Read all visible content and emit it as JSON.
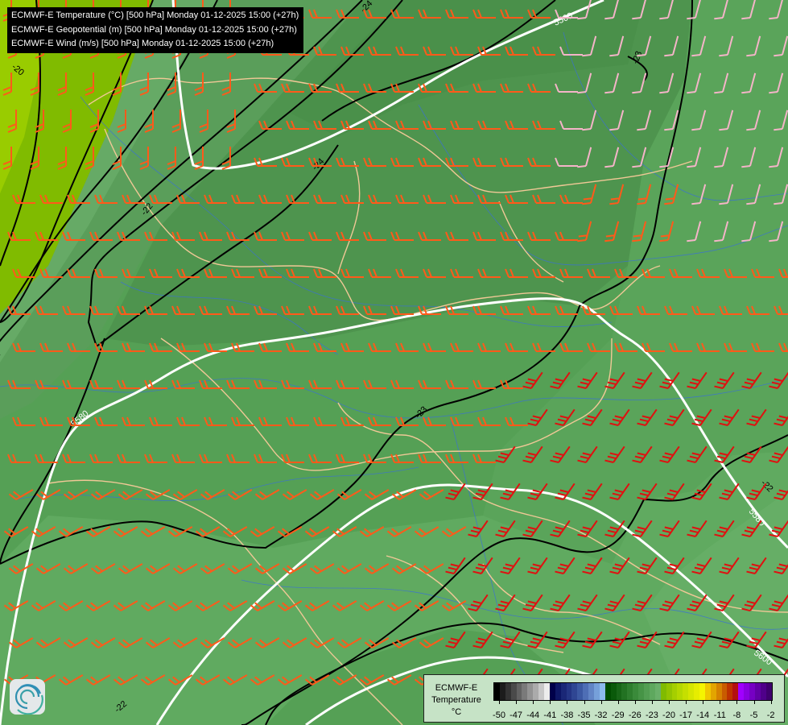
{
  "titles": [
    "ECMWF-E Temperature (°C) [500 hPa] Monday 01-12-2025 15:00 (+27h)",
    "ECMWF-E Geopotential (m) [500 hPa] Monday 01-12-2025 15:00 (+27h)",
    "ECMWF-E Wind (m/s) [500 hPa] Monday 01-12-2025 15:00 (+27h)"
  ],
  "legend": {
    "title_line1": "ECMWF-E",
    "title_line2": "Temperature",
    "unit": "°C",
    "ticks": [
      "-50",
      "-47",
      "-44",
      "-41",
      "-38",
      "-35",
      "-32",
      "-29",
      "-26",
      "-23",
      "-20",
      "-17",
      "-14",
      "-11",
      "-8",
      "-5",
      "-2"
    ],
    "colors": [
      "#000000",
      "#1c1c1c",
      "#333333",
      "#4a4a4a",
      "#626262",
      "#7a7a7a",
      "#939393",
      "#ababab",
      "#c8c8c8",
      "#ececec",
      "#00004a",
      "#0d1666",
      "#1a2777",
      "#243585",
      "#2f4693",
      "#3c59a3",
      "#4e6eb5",
      "#6285c6",
      "#76a0da",
      "#8cbbef",
      "#004d00",
      "#0a5a0a",
      "#176617",
      "#227222",
      "#2e7e2e",
      "#3a8a3a",
      "#469446",
      "#529e52",
      "#5ea85e",
      "#6ab06a",
      "#80bb00",
      "#93c400",
      "#a5cf00",
      "#b5d800",
      "#c5df00",
      "#d6e600",
      "#e6ed00",
      "#f5f500",
      "#f0c800",
      "#e3a500",
      "#d68200",
      "#c95c00",
      "#be3300",
      "#b41010",
      "#a000ff",
      "#8a00e0",
      "#7600c4",
      "#6200a6",
      "#4f008a",
      "#3f006e"
    ]
  },
  "map": {
    "geopotential_labels": [
      "5560",
      "5580",
      "5600",
      "5580"
    ],
    "temperature_labels": [
      "-24",
      "-23",
      "-24",
      "-22",
      "-23",
      "-22",
      "-22",
      "-20"
    ],
    "colors": {
      "geopotential": "#ffffff",
      "isotherm": "#000000",
      "borders": "#f0c896",
      "rivers": "#3a6fd8",
      "wind_moderate": "#ff5a1a",
      "wind_strong": "#e01010",
      "wind_light": "#f4b4c8"
    }
  }
}
